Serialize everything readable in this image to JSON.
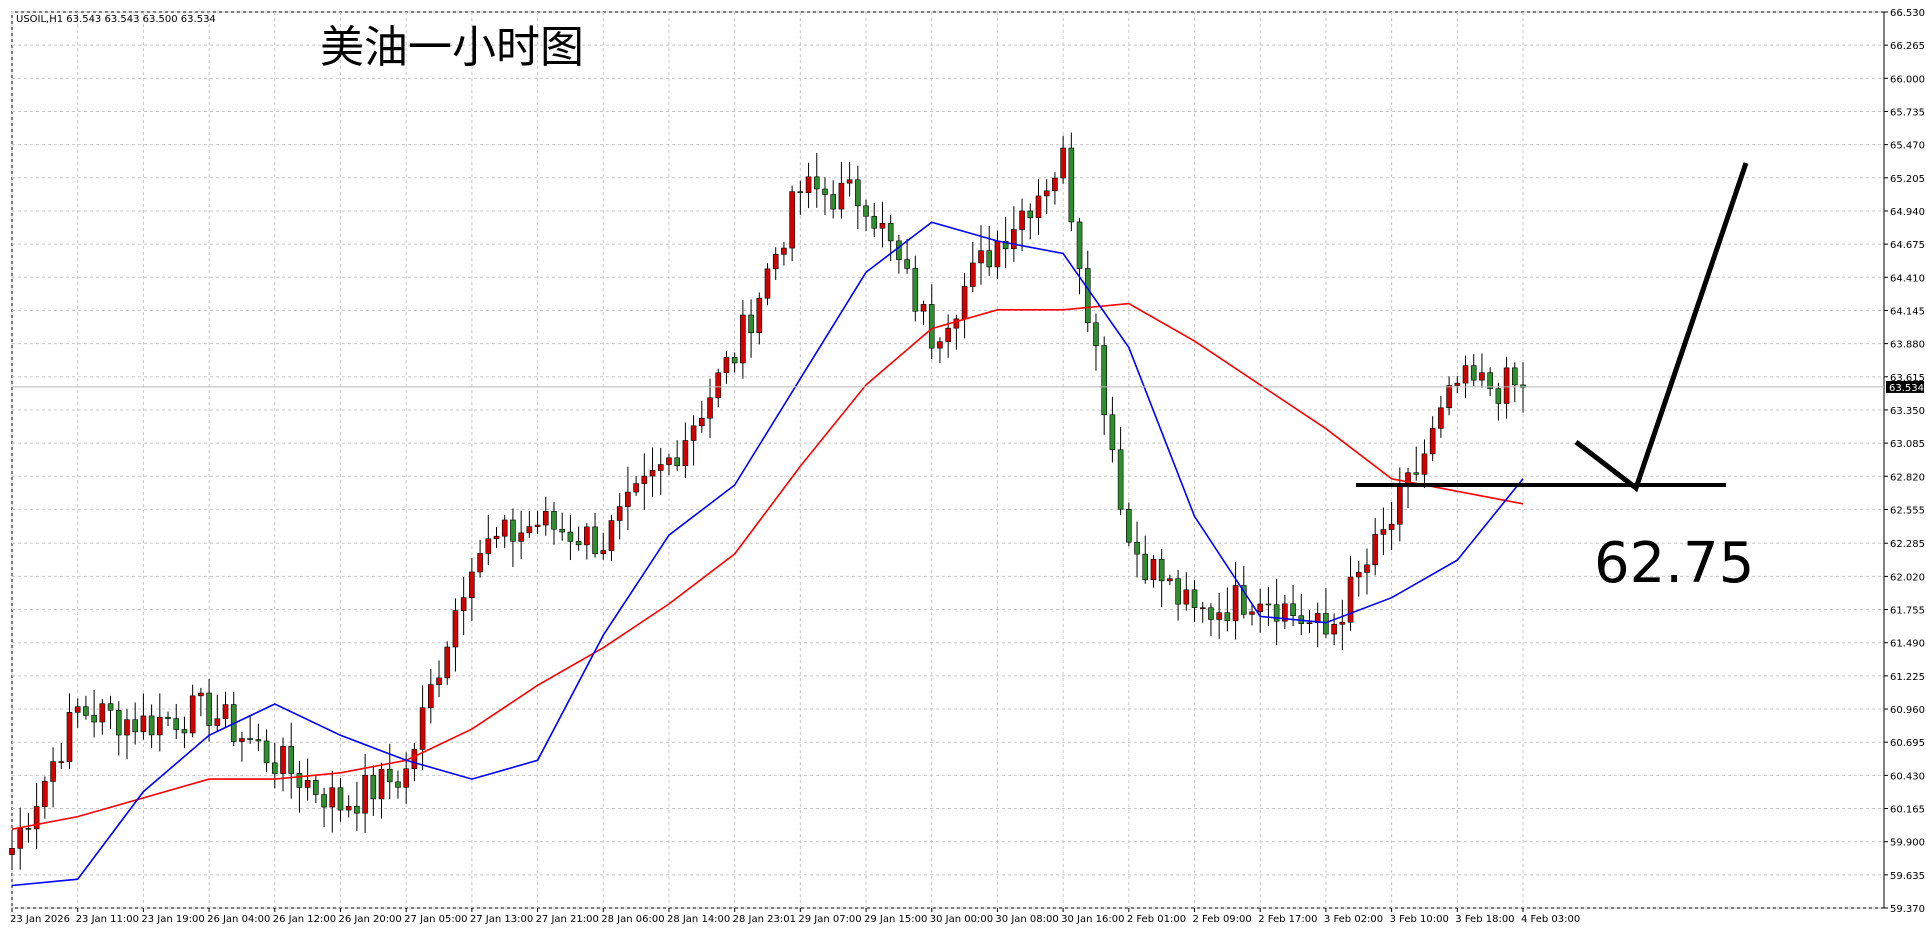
{
  "header": {
    "symbol_info": "USOIL,H1  63.543 63.543 63.500 63.534",
    "overlay_title": "美油一小时图"
  },
  "annotation": {
    "level_label": "62.75",
    "level_value": 62.75
  },
  "colors": {
    "bull_candle": "#d40000",
    "bear_candle": "#2f8f2f",
    "wick": "#000000",
    "ma_fast": "#0000ff",
    "ma_slow": "#ff0000",
    "grid": "#c8c8c8",
    "price_line": "#b8b8b8",
    "current_price_tag": "#000000"
  },
  "chart_data": {
    "type": "candlestick",
    "ylim": [
      59.37,
      66.53
    ],
    "current_price": 63.534,
    "y_ticks": [
      "66.530",
      "66.265",
      "66.000",
      "65.735",
      "65.470",
      "65.205",
      "64.940",
      "64.675",
      "64.410",
      "64.145",
      "63.880",
      "63.615",
      "63.350",
      "63.085",
      "62.820",
      "62.555",
      "62.285",
      "62.020",
      "61.755",
      "61.490",
      "61.225",
      "60.960",
      "60.695",
      "60.430",
      "60.165",
      "59.900",
      "59.635",
      "59.370"
    ],
    "x_labels": [
      "23 Jan 2026",
      "23 Jan 11:00",
      "23 Jan 19:00",
      "26 Jan 04:00",
      "26 Jan 12:00",
      "26 Jan 20:00",
      "27 Jan 05:00",
      "27 Jan 13:00",
      "27 Jan 21:00",
      "28 Jan 06:00",
      "28 Jan 14:00",
      "28 Jan 23:01",
      "29 Jan 07:00",
      "29 Jan 15:00",
      "30 Jan 00:00",
      "30 Jan 08:00",
      "30 Jan 16:00",
      "2 Feb 01:00",
      "2 Feb 09:00",
      "2 Feb 17:00",
      "3 Feb 02:00",
      "3 Feb 10:00",
      "3 Feb 18:00",
      "4 Feb 03:00"
    ],
    "key_closes": [
      {
        "x": "23 Jan 2026",
        "close": 59.85
      },
      {
        "x": "23 Jan 11:00",
        "close": 60.95
      },
      {
        "x": "23 Jan 19:00",
        "close": 60.85
      },
      {
        "x": "26 Jan 04:00",
        "close": 60.95
      },
      {
        "x": "26 Jan 12:00",
        "close": 60.55
      },
      {
        "x": "26 Jan 20:00",
        "close": 60.2
      },
      {
        "x": "27 Jan 05:00",
        "close": 60.45
      },
      {
        "x": "27 Jan 13:00",
        "close": 62.2
      },
      {
        "x": "27 Jan 21:00",
        "close": 62.45
      },
      {
        "x": "28 Jan 06:00",
        "close": 62.3
      },
      {
        "x": "28 Jan 14:00",
        "close": 62.95
      },
      {
        "x": "28 Jan 23:01",
        "close": 63.8
      },
      {
        "x": "29 Jan 07:00",
        "close": 65.1
      },
      {
        "x": "29 Jan 15:00",
        "close": 65.05
      },
      {
        "x": "30 Jan 00:00",
        "close": 63.95
      },
      {
        "x": "30 Jan 08:00",
        "close": 64.7
      },
      {
        "x": "30 Jan 16:00",
        "close": 65.35
      },
      {
        "x": "2 Feb 01:00",
        "close": 62.3
      },
      {
        "x": "2 Feb 09:00",
        "close": 61.7
      },
      {
        "x": "2 Feb 17:00",
        "close": 61.9
      },
      {
        "x": "3 Feb 02:00",
        "close": 61.55
      },
      {
        "x": "3 Feb 10:00",
        "close": 62.45
      },
      {
        "x": "3 Feb 18:00",
        "close": 63.55
      },
      {
        "x": "4 Feb 03:00",
        "close": 63.53
      }
    ],
    "ma_fast": [
      59.55,
      59.6,
      60.3,
      60.75,
      61.0,
      60.75,
      60.55,
      60.4,
      60.55,
      61.55,
      62.35,
      62.75,
      63.6,
      64.45,
      64.85,
      64.7,
      64.6,
      63.85,
      62.5,
      61.7,
      61.65,
      61.85,
      62.15,
      62.8
    ],
    "ma_slow": [
      60.0,
      60.1,
      60.25,
      60.4,
      60.4,
      60.45,
      60.55,
      60.8,
      61.15,
      61.45,
      61.8,
      62.2,
      62.9,
      63.55,
      64.0,
      64.15,
      64.15,
      64.2,
      63.9,
      63.55,
      63.2,
      62.8,
      62.7,
      62.6
    ],
    "horizontal_level": 62.75
  }
}
